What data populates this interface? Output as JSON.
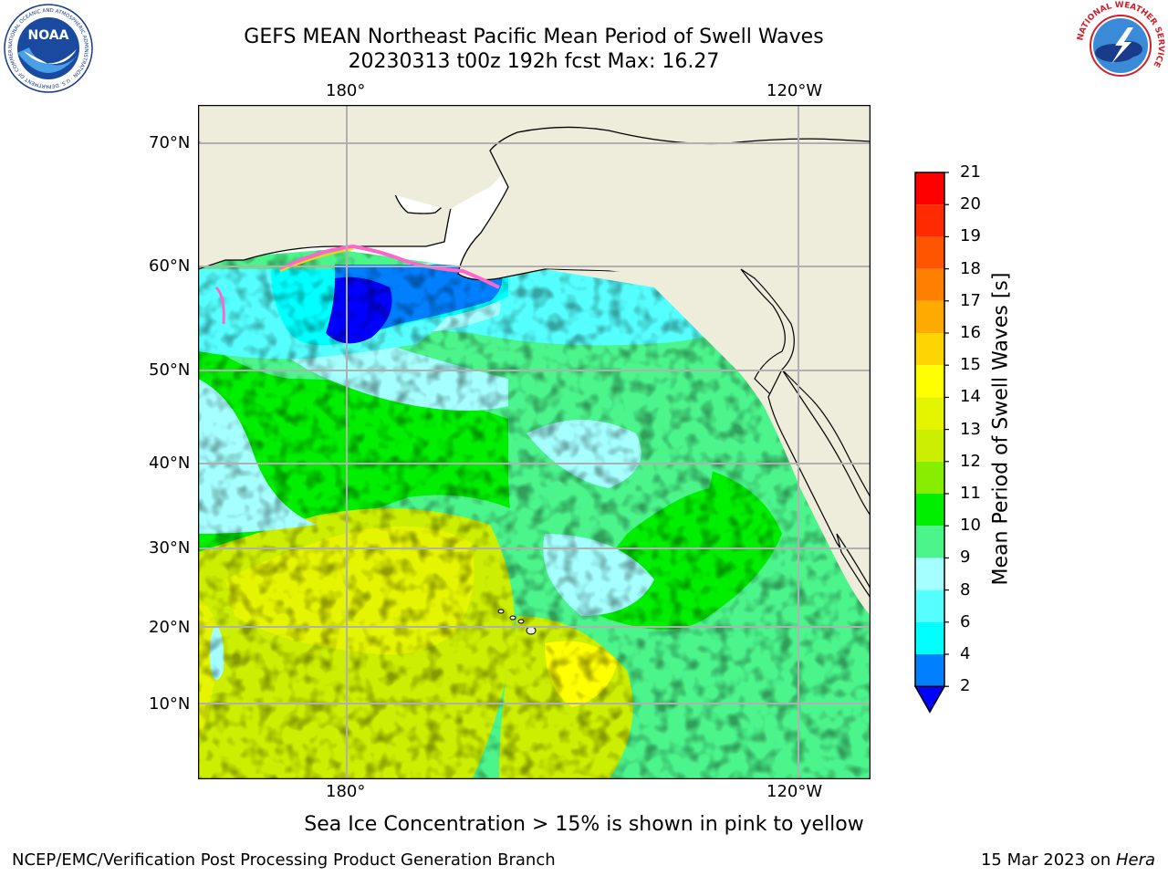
{
  "header": {
    "title_line1": "GEFS MEAN Northeast Pacific Mean Period of Swell Waves",
    "title_line2": "20230313 t00z 192h fcst   Max: 16.27"
  },
  "logos": {
    "noaa_text": "NOAA",
    "noaa_ring": "NATIONAL OCEANIC AND ATMOSPHERIC ADMINISTRATION · U.S. DEPARTMENT OF COMMERCE",
    "nws_ring": "NATIONAL WEATHER SERVICE"
  },
  "map": {
    "lon_labels_top": [
      "180°",
      "120°W"
    ],
    "lon_labels_bottom": [
      "180°",
      "120°W"
    ],
    "lat_labels": [
      "70°N",
      "60°N",
      "50°N",
      "40°N",
      "30°N",
      "20°N",
      "10°N"
    ],
    "colors": {
      "land": "#eeeddb",
      "gridline": "#b0b0b0",
      "coast": "#000000"
    }
  },
  "colorbar": {
    "label": "Mean Period of Swell Waves [s]",
    "ticks": [
      "21",
      "20",
      "19",
      "18",
      "17",
      "16",
      "15",
      "14",
      "13",
      "12",
      "11",
      "10",
      "9",
      "8",
      "6",
      "4",
      "2"
    ],
    "colors_top_to_bottom": [
      "#ff0000",
      "#ff2a00",
      "#ff5500",
      "#ff7f00",
      "#ffaa00",
      "#ffd400",
      "#ffff00",
      "#e5f500",
      "#ccee00",
      "#88ee00",
      "#00ee00",
      "#4cf58c",
      "#a5ffff",
      "#55ffff",
      "#00ffff",
      "#0080ff",
      "#0000ff"
    ]
  },
  "note": "Sea Ice Concentration > 15% is shown in pink to yellow",
  "footer": {
    "left": "NCEP/EMC/Verification Post Processing Product Generation Branch",
    "right_prefix": "15 Mar 2023 on ",
    "right_italic": "Hera"
  }
}
